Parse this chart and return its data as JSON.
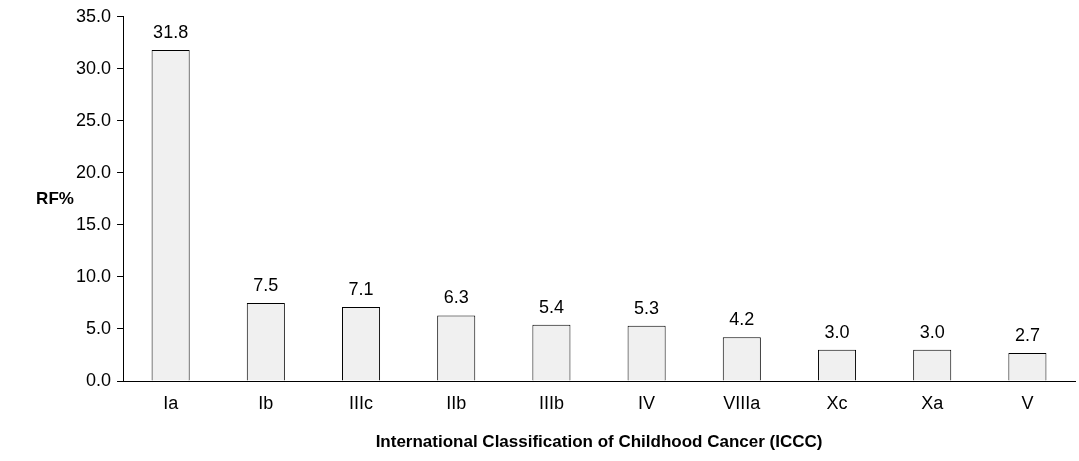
{
  "chart_data": {
    "type": "bar",
    "xlabel": "International Classification of Childhood Cancer (ICCC)",
    "ylabel": "RF%",
    "categories": [
      "Ia",
      "Ib",
      "IIIc",
      "IIb",
      "IIIb",
      "IV",
      "VIIIa",
      "Xc",
      "Xa",
      "V"
    ],
    "values": [
      31.8,
      7.5,
      7.1,
      6.3,
      5.4,
      5.3,
      4.2,
      3.0,
      3.0,
      2.7
    ],
    "value_labels": [
      "31.8",
      "7.5",
      "7.1",
      "6.3",
      "5.4",
      "5.3",
      "4.2",
      "3.0",
      "3.0",
      "2.7"
    ],
    "color": "#f0f0f0",
    "ylim": [
      0,
      35
    ],
    "yticks": [
      {
        "value": 0,
        "label": "0.0"
      },
      {
        "value": 5,
        "label": "5.0"
      },
      {
        "value": 10,
        "label": "10.0"
      },
      {
        "value": 15,
        "label": "15.0"
      },
      {
        "value": 20,
        "label": "20.0"
      },
      {
        "value": 25,
        "label": "25.0"
      },
      {
        "value": 30,
        "label": "30.0"
      },
      {
        "value": 35,
        "label": "35.0"
      }
    ],
    "grid": false,
    "legend": false
  }
}
